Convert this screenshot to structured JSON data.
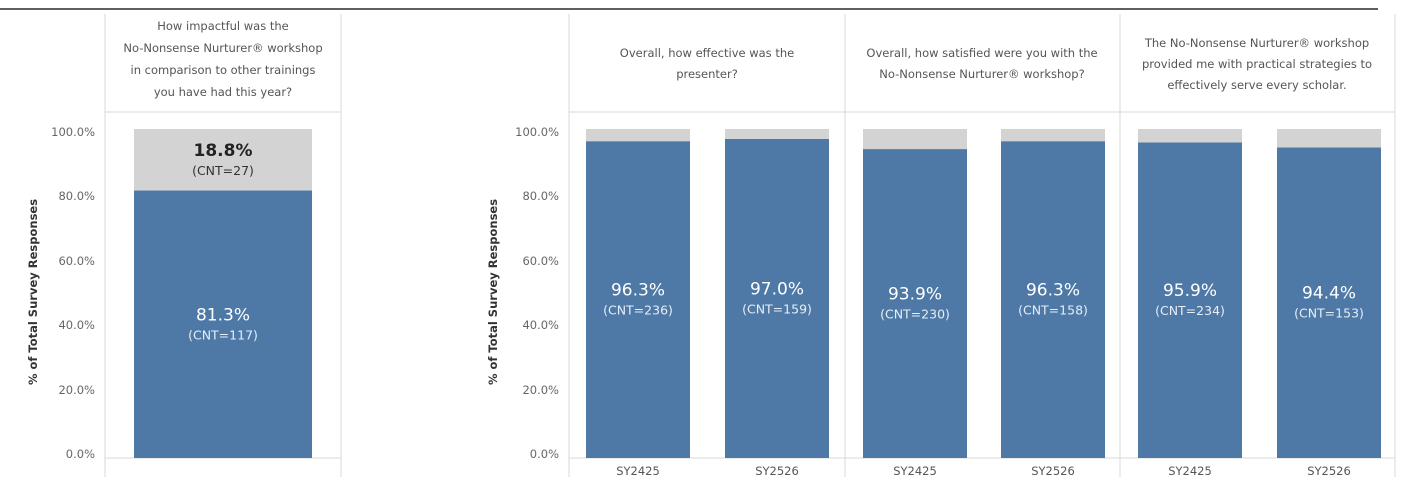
{
  "chart_data": [
    {
      "type": "bar",
      "stacked": true,
      "panels": [
        {
          "title": "How impactful was the No-Nonsense Nurturer® workshop in comparison to other trainings you have had this year?",
          "title_lines": [
            "How impactful was the",
            "No-Nonsense Nurturer® workshop",
            "in comparison to other trainings",
            "you have had this year?"
          ],
          "bars": [
            {
              "category": "",
              "segments": [
                {
                  "value": 81.3,
                  "label": "81.3%",
                  "count_label": "(CNT=117)"
                },
                {
                  "value": 18.8,
                  "label": "18.8%",
                  "count_label": "(CNT=27)"
                }
              ]
            }
          ]
        }
      ],
      "ylabel": "% of Total Survey Responses",
      "yticks": [
        "100.0%",
        "80.0%",
        "60.0%",
        "40.0%",
        "20.0%",
        "0.0%"
      ],
      "ylim": [
        0,
        100
      ]
    },
    {
      "type": "bar",
      "stacked": true,
      "panels": [
        {
          "title": "Overall, how effective was the presenter?",
          "title_lines": [
            "Overall, how effective was the",
            "presenter?"
          ],
          "bars": [
            {
              "category": "SY2425",
              "segments": [
                {
                  "value": 96.3,
                  "label": "96.3%",
                  "count_label": "(CNT=236)"
                },
                {
                  "value": 3.7
                }
              ]
            },
            {
              "category": "SY2526",
              "segments": [
                {
                  "value": 97.0,
                  "label": "97.0%",
                  "count_label": "(CNT=159)"
                },
                {
                  "value": 3.0
                }
              ]
            }
          ]
        },
        {
          "title": "Overall, how satisfied were you with the No-Nonsense Nurturer® workshop?",
          "title_lines": [
            "Overall, how satisfied were you with the",
            "No-Nonsense Nurturer® workshop?"
          ],
          "bars": [
            {
              "category": "SY2425",
              "segments": [
                {
                  "value": 93.9,
                  "label": "93.9%",
                  "count_label": "(CNT=230)"
                },
                {
                  "value": 6.1
                }
              ]
            },
            {
              "category": "SY2526",
              "segments": [
                {
                  "value": 96.3,
                  "label": "96.3%",
                  "count_label": "(CNT=158)"
                },
                {
                  "value": 3.7
                }
              ]
            }
          ]
        },
        {
          "title": "The No-Nonsense Nurturer® workshop provided me with practical strategies to effectively serve every scholar.",
          "title_lines": [
            "The No-Nonsense Nurturer® workshop",
            "provided me with practical strategies to",
            "effectively serve every scholar."
          ],
          "bars": [
            {
              "category": "SY2425",
              "segments": [
                {
                  "value": 95.9,
                  "label": "95.9%",
                  "count_label": "(CNT=234)"
                },
                {
                  "value": 4.1
                }
              ]
            },
            {
              "category": "SY2526",
              "segments": [
                {
                  "value": 94.4,
                  "label": "94.4%",
                  "count_label": "(CNT=153)"
                },
                {
                  "value": 5.6
                }
              ]
            }
          ]
        }
      ],
      "ylabel": "% of Total Survey Responses",
      "yticks": [
        "100.0%",
        "80.0%",
        "60.0%",
        "40.0%",
        "20.0%",
        "0.0%"
      ],
      "ylim": [
        0,
        100
      ]
    }
  ],
  "colors": {
    "positive": "#4e79a7",
    "other": "#d3d3d3",
    "grid_line": "#d9d9d9",
    "top_rule": "#5f5f5f"
  }
}
